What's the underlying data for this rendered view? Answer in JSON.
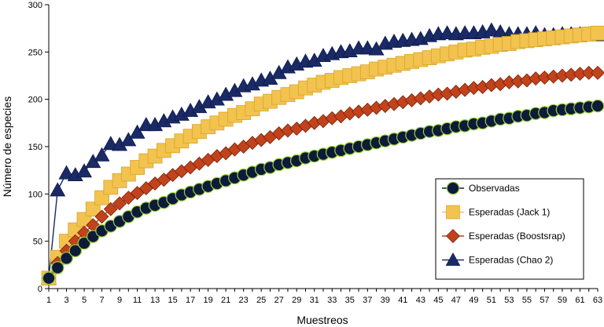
{
  "chart_data": {
    "type": "line",
    "title": "",
    "xlabel": "Muestreos",
    "ylabel": "Número de especies",
    "xlim": [
      1,
      63
    ],
    "ylim": [
      0,
      300
    ],
    "y_ticks": [
      0,
      50,
      100,
      150,
      200,
      250,
      300
    ],
    "x_ticks": [
      1,
      3,
      5,
      7,
      9,
      11,
      13,
      15,
      17,
      19,
      21,
      23,
      25,
      27,
      29,
      31,
      33,
      35,
      37,
      39,
      41,
      43,
      45,
      47,
      49,
      51,
      53,
      55,
      57,
      59,
      61,
      63
    ],
    "y_tick_labels": [
      "0",
      "50",
      "100",
      "150",
      "200",
      "250",
      "300"
    ],
    "x_tick_labels": [
      "1",
      "3",
      "5",
      "7",
      "9",
      "11",
      "13",
      "15",
      "17",
      "19",
      "21",
      "23",
      "25",
      "27",
      "29",
      "31",
      "33",
      "35",
      "37",
      "39",
      "41",
      "43",
      "45",
      "47",
      "49",
      "51",
      "53",
      "55",
      "57",
      "59",
      "61",
      "63"
    ],
    "legend_position": "bottom-right",
    "x": [
      1,
      2,
      3,
      4,
      5,
      6,
      7,
      8,
      9,
      10,
      11,
      12,
      13,
      14,
      15,
      16,
      17,
      18,
      19,
      20,
      21,
      22,
      23,
      24,
      25,
      26,
      27,
      28,
      29,
      30,
      31,
      32,
      33,
      34,
      35,
      36,
      37,
      38,
      39,
      40,
      41,
      42,
      43,
      44,
      45,
      46,
      47,
      48,
      49,
      50,
      51,
      52,
      53,
      54,
      55,
      56,
      57,
      58,
      59,
      60,
      61,
      62,
      63
    ],
    "series": [
      {
        "name": "Observadas",
        "marker": "circle",
        "color": "#0d1a3a",
        "edge": "#9bcf3a",
        "values": [
          11,
          22,
          32,
          40,
          48,
          55,
          61,
          66,
          71,
          76,
          81,
          85,
          88,
          91,
          95,
          99,
          102,
          105,
          108,
          111,
          114,
          117,
          120,
          123,
          126,
          128,
          131,
          133,
          135,
          138,
          140,
          142,
          144,
          146,
          148,
          150,
          152,
          154,
          156,
          158,
          160,
          162,
          164,
          166,
          167,
          169,
          171,
          172,
          174,
          175,
          177,
          179,
          180,
          182,
          183,
          185,
          186,
          188,
          189,
          190,
          191,
          192,
          193
        ]
      },
      {
        "name": "Esperadas (Jack 1)",
        "marker": "square",
        "color": "#f2c34f",
        "edge": "#d9a42a",
        "values": [
          11,
          33,
          50,
          62,
          73,
          84,
          96,
          107,
          114,
          121,
          128,
          135,
          140,
          146,
          151,
          156,
          161,
          166,
          171,
          175,
          179,
          183,
          186,
          190,
          195,
          198,
          202,
          205,
          208,
          212,
          215,
          218,
          220,
          223,
          225,
          227,
          229,
          232,
          234,
          236,
          238,
          240,
          242,
          244,
          246,
          248,
          250,
          252,
          253,
          255,
          256,
          258,
          259,
          261,
          262,
          263,
          264,
          265,
          266,
          267,
          268,
          269,
          270
        ]
      },
      {
        "name": "Esperadas (Boostsrap)",
        "marker": "diamond",
        "color": "#c1431c",
        "edge": "#7a1f0a",
        "values": [
          11,
          27,
          40,
          50,
          59,
          67,
          76,
          84,
          90,
          96,
          101,
          106,
          111,
          115,
          120,
          124,
          128,
          132,
          136,
          140,
          143,
          147,
          150,
          154,
          157,
          160,
          164,
          167,
          169,
          172,
          175,
          177,
          180,
          182,
          185,
          187,
          189,
          191,
          193,
          195,
          197,
          199,
          201,
          203,
          205,
          206,
          208,
          210,
          212,
          213,
          215,
          216,
          218,
          219,
          220,
          222,
          223,
          224,
          225,
          226,
          227,
          228,
          228
        ]
      },
      {
        "name": "Esperadas (Chao 2)",
        "marker": "triangle",
        "color": "#1a2a66",
        "edge": "#0e1a4a",
        "values": [
          11,
          104,
          122,
          120,
          124,
          134,
          141,
          153,
          152,
          157,
          165,
          173,
          173,
          177,
          181,
          184,
          188,
          192,
          197,
          200,
          205,
          209,
          214,
          216,
          220,
          222,
          228,
          234,
          237,
          240,
          241,
          246,
          248,
          250,
          251,
          254,
          254,
          253,
          259,
          261,
          262,
          263,
          264,
          267,
          269,
          270,
          269,
          270,
          270,
          271,
          273,
          271,
          269,
          269,
          269,
          270,
          268,
          268,
          269,
          269,
          269,
          269,
          268
        ]
      }
    ]
  },
  "legend": {
    "items": [
      "Observadas",
      "Esperadas (Jack 1)",
      "Esperadas (Boostsrap)",
      "Esperadas (Chao 2)"
    ]
  }
}
